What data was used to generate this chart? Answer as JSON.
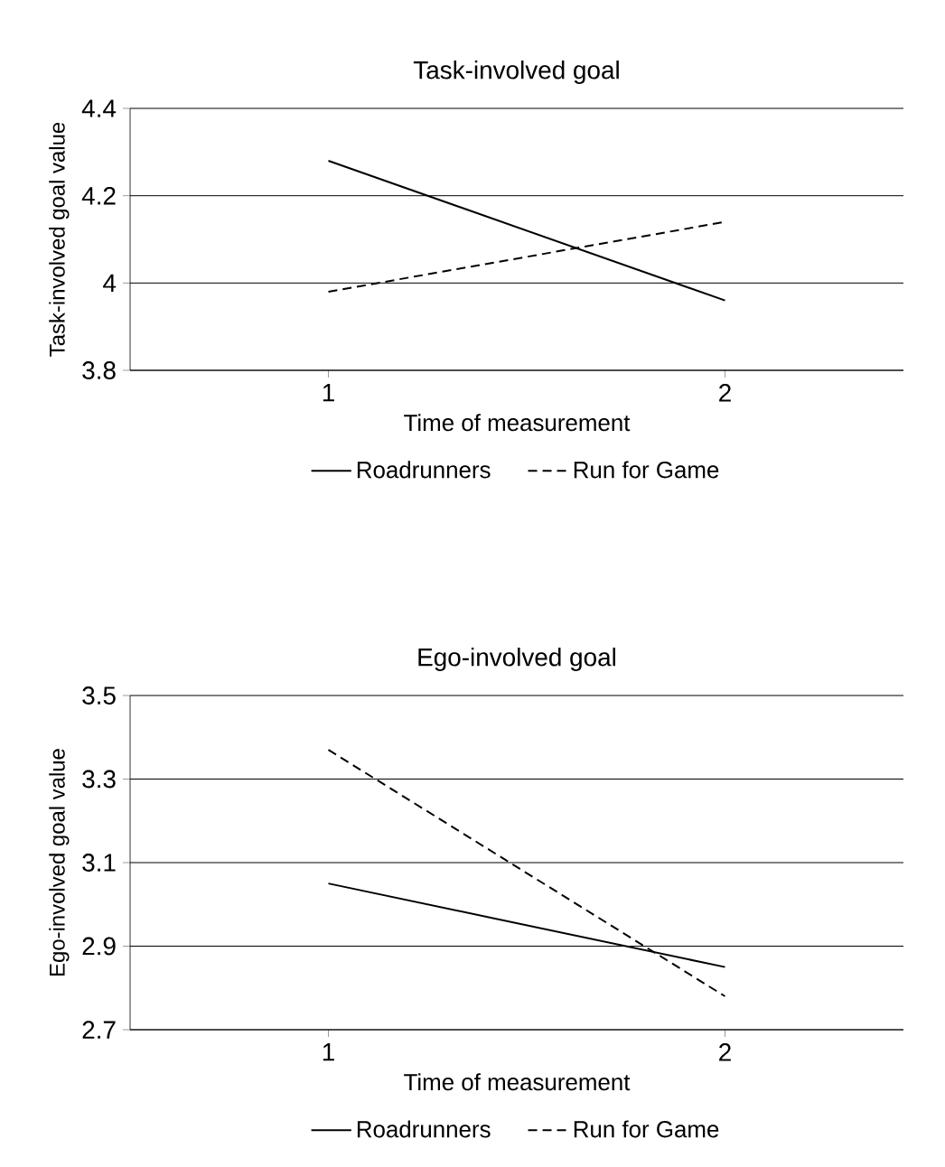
{
  "chart_data": [
    {
      "type": "line",
      "title": "Task-involved goal",
      "xlabel": "Time of measurement",
      "ylabel": "Task-involved goal value",
      "categories": [
        "1",
        "2"
      ],
      "series": [
        {
          "name": "Roadrunners",
          "color": "#000000",
          "values": [
            4.28,
            3.96
          ],
          "line_style": "solid"
        },
        {
          "name": "Run for Game",
          "color": "#000000",
          "values": [
            3.98,
            4.14
          ],
          "line_style": "dashed"
        }
      ],
      "ylim": [
        3.8,
        4.4
      ],
      "yticks": [
        3.8,
        {
          "value": 4,
          "label": "4"
        },
        4.2,
        4.4
      ],
      "grid": "y",
      "legend": "bottom",
      "marker": "none"
    },
    {
      "type": "line",
      "title": "Ego-involved goal",
      "xlabel": "Time of measurement",
      "ylabel": "Ego-involved goal value",
      "categories": [
        "1",
        "2"
      ],
      "series": [
        {
          "name": "Roadrunners",
          "color": "#000000",
          "values": [
            3.05,
            2.85
          ],
          "line_style": "solid"
        },
        {
          "name": "Run for Game",
          "color": "#000000",
          "values": [
            3.37,
            2.78
          ],
          "line_style": "dashed"
        }
      ],
      "ylim": [
        2.7,
        3.5
      ],
      "yticks": [
        2.7,
        2.9,
        3.1,
        3.3,
        3.5
      ],
      "grid": "y",
      "legend": "bottom",
      "marker": "none"
    }
  ]
}
